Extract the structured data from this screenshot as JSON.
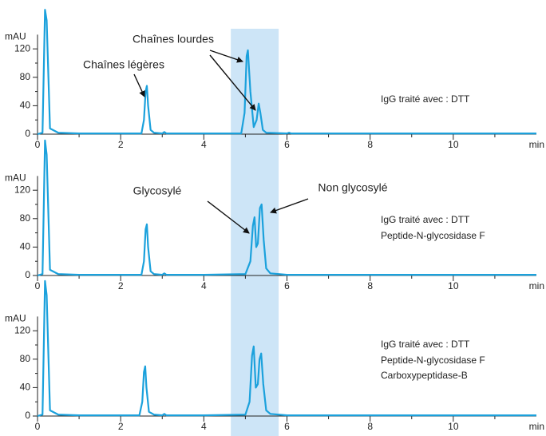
{
  "chart_data": [
    {
      "type": "line",
      "y_label": "mAU",
      "x_label": "min",
      "color": "#1ba1dc",
      "xlim": [
        0,
        12
      ],
      "ylim": [
        0,
        140
      ],
      "xticks": [
        0,
        2,
        4,
        6,
        8,
        10
      ],
      "yticks": [
        0,
        40,
        80,
        120
      ],
      "xticks_minor": [
        1,
        3,
        5,
        7,
        9,
        11
      ],
      "yticks_minor": [
        20,
        60,
        100
      ],
      "highlight": [
        4.65,
        5.8
      ],
      "x": [
        0,
        0.12,
        0.18,
        0.22,
        0.3,
        0.5,
        1,
        2,
        2.5,
        2.56,
        2.6,
        2.63,
        2.66,
        2.72,
        2.8,
        3,
        3.05,
        3.1,
        4,
        4.9,
        4.98,
        5.03,
        5.06,
        5.12,
        5.2,
        5.27,
        5.32,
        5.36,
        5.42,
        5.5,
        6,
        6.05,
        6.1,
        8,
        10,
        12
      ],
      "values": [
        0,
        2,
        175,
        160,
        8,
        2,
        1,
        1,
        1,
        20,
        60,
        68,
        40,
        6,
        2,
        1,
        3,
        1,
        1,
        1,
        30,
        110,
        118,
        60,
        10,
        20,
        43,
        30,
        6,
        2,
        1,
        2,
        1,
        1,
        1,
        1
      ],
      "annotations": [
        "Chaînes légères",
        "Chaînes lourdes"
      ],
      "notes": [
        "IgG traité avec : DTT"
      ]
    },
    {
      "type": "line",
      "y_label": "mAU",
      "x_label": "min",
      "color": "#1ba1dc",
      "xlim": [
        0,
        12
      ],
      "ylim": [
        0,
        140
      ],
      "xticks": [
        0,
        2,
        4,
        6,
        8,
        10
      ],
      "yticks": [
        0,
        40,
        80,
        120
      ],
      "xticks_minor": [
        1,
        3,
        5,
        7,
        9,
        11
      ],
      "yticks_minor": [
        20,
        60,
        100
      ],
      "highlight": [
        4.65,
        5.8
      ],
      "x": [
        0,
        0.12,
        0.18,
        0.22,
        0.3,
        0.5,
        1,
        2,
        2.5,
        2.56,
        2.6,
        2.63,
        2.66,
        2.72,
        2.8,
        3,
        3.05,
        3.1,
        4,
        5,
        5.12,
        5.18,
        5.22,
        5.26,
        5.3,
        5.35,
        5.39,
        5.44,
        5.5,
        5.6,
        6,
        8,
        10,
        12
      ],
      "values": [
        0,
        2,
        190,
        170,
        8,
        2,
        1,
        1,
        1,
        20,
        65,
        72,
        40,
        6,
        2,
        1,
        3,
        1,
        1,
        2,
        20,
        70,
        82,
        40,
        45,
        95,
        100,
        50,
        10,
        3,
        1,
        1,
        1,
        1
      ],
      "annotations": [
        "Glycosylé",
        "Non glycosylé"
      ],
      "notes": [
        "IgG traité avec : DTT",
        "Peptide-N-glycosidase F"
      ]
    },
    {
      "type": "line",
      "y_label": "mAU",
      "x_label": "min",
      "color": "#1ba1dc",
      "xlim": [
        0,
        12
      ],
      "ylim": [
        0,
        140
      ],
      "xticks": [
        0,
        2,
        4,
        6,
        8,
        10
      ],
      "yticks": [
        0,
        40,
        80,
        120
      ],
      "xticks_minor": [
        1,
        3,
        5,
        7,
        9,
        11
      ],
      "yticks_minor": [
        20,
        60,
        100
      ],
      "highlight": [
        4.65,
        5.8
      ],
      "x": [
        0,
        0.12,
        0.18,
        0.22,
        0.3,
        0.5,
        1,
        2,
        2.45,
        2.52,
        2.56,
        2.59,
        2.62,
        2.68,
        2.8,
        3,
        3.05,
        3.1,
        4,
        5,
        5.1,
        5.16,
        5.2,
        5.25,
        5.3,
        5.34,
        5.38,
        5.43,
        5.5,
        5.6,
        6,
        8,
        10,
        12
      ],
      "values": [
        0,
        2,
        190,
        170,
        8,
        2,
        1,
        1,
        1,
        20,
        62,
        70,
        40,
        6,
        2,
        1,
        3,
        1,
        1,
        2,
        20,
        85,
        98,
        40,
        45,
        80,
        88,
        45,
        8,
        3,
        1,
        1,
        1,
        1
      ],
      "annotations": [],
      "notes": [
        "IgG traité avec : DTT",
        "Peptide-N-glycosidase F",
        "Carboxypeptidase-B"
      ]
    }
  ]
}
